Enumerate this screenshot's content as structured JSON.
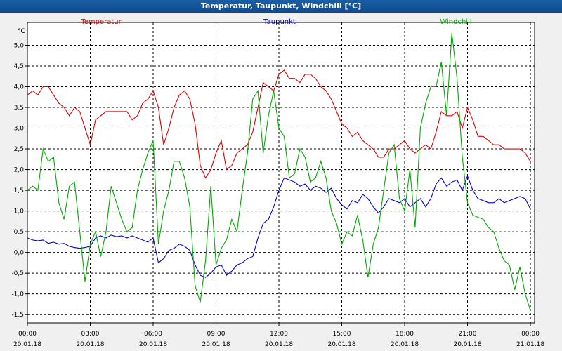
{
  "window": {
    "title": "Temperatur, Taupunkt, Windchill [°C]"
  },
  "colors": {
    "temperature": "#dd0000",
    "dewpoint": "#0000cc",
    "windchill": "#00aa00",
    "grid": "#000000",
    "titlebar": "#1b5fa6"
  },
  "chart_data": {
    "type": "line",
    "title": "Temperatur, Taupunkt, Windchill [°C]",
    "ylabel": "°C",
    "ylim": [
      -1.7,
      5.55
    ],
    "xlim": [
      0,
      24.2
    ],
    "grid": true,
    "legend_placement": "top",
    "y_ticks": [
      "5,0",
      "4,5",
      "4,0",
      "3,5",
      "3,0",
      "2,5",
      "2,0",
      "1,5",
      "1,0",
      "0,5",
      "0,0",
      "-0,5",
      "-1,0",
      "-1,5"
    ],
    "y_tick_values": [
      5.0,
      4.5,
      4.0,
      3.5,
      3.0,
      2.5,
      2.0,
      1.5,
      1.0,
      0.5,
      0.0,
      -0.5,
      -1.0,
      -1.5
    ],
    "x_ticks": [
      {
        "time": "00:00",
        "date": "20.01.18",
        "hour": 0
      },
      {
        "time": "03:00",
        "date": "20.01.18",
        "hour": 3
      },
      {
        "time": "06:00",
        "date": "20.01.18",
        "hour": 6
      },
      {
        "time": "09:00",
        "date": "20.01.18",
        "hour": 9
      },
      {
        "time": "12:00",
        "date": "20.01.18",
        "hour": 12
      },
      {
        "time": "15:00",
        "date": "20.01.18",
        "hour": 15
      },
      {
        "time": "18:00",
        "date": "20.01.18",
        "hour": 18
      },
      {
        "time": "21:00",
        "date": "20.01.18",
        "hour": 21
      },
      {
        "time": "00:00",
        "date": "21.01.18",
        "hour": 24
      }
    ],
    "series": [
      {
        "name": "Temperatur",
        "color": "#dd0000",
        "x": [
          0,
          0.25,
          0.5,
          0.75,
          1,
          1.25,
          1.5,
          1.75,
          2,
          2.25,
          2.5,
          2.75,
          3,
          3.25,
          3.5,
          3.75,
          4,
          4.25,
          4.5,
          4.75,
          5,
          5.25,
          5.5,
          5.75,
          6,
          6.25,
          6.5,
          6.75,
          7,
          7.25,
          7.5,
          7.75,
          8,
          8.25,
          8.5,
          8.75,
          9,
          9.25,
          9.5,
          9.75,
          10,
          10.25,
          10.5,
          10.75,
          11,
          11.25,
          11.5,
          11.75,
          12,
          12.25,
          12.5,
          12.75,
          13,
          13.25,
          13.5,
          13.75,
          14,
          14.25,
          14.5,
          14.75,
          15,
          15.25,
          15.5,
          15.75,
          16,
          16.25,
          16.5,
          16.75,
          17,
          17.25,
          17.5,
          17.75,
          18,
          18.25,
          18.5,
          18.75,
          19,
          19.25,
          19.5,
          19.75,
          20,
          20.25,
          20.5,
          20.75,
          21,
          21.25,
          21.5,
          21.75,
          22,
          22.25,
          22.5,
          22.75,
          23,
          23.25,
          23.5,
          23.75,
          24
        ],
        "y": [
          3.8,
          3.9,
          3.8,
          4.0,
          4.0,
          3.8,
          3.6,
          3.5,
          3.3,
          3.5,
          3.4,
          3.0,
          2.6,
          3.2,
          3.3,
          3.4,
          3.4,
          3.4,
          3.4,
          3.4,
          3.2,
          3.3,
          3.6,
          3.7,
          3.9,
          3.5,
          2.6,
          3.0,
          3.5,
          3.8,
          3.9,
          3.7,
          3.1,
          2.1,
          1.8,
          2.0,
          2.4,
          2.7,
          2.0,
          2.1,
          2.4,
          2.5,
          2.6,
          2.9,
          3.5,
          4.1,
          4.0,
          3.9,
          4.3,
          4.4,
          4.2,
          4.2,
          4.1,
          4.3,
          4.3,
          4.2,
          4.0,
          3.9,
          3.7,
          3.4,
          3.1,
          3.0,
          2.8,
          2.9,
          2.7,
          2.6,
          2.5,
          2.3,
          2.3,
          2.5,
          2.5,
          2.6,
          2.7,
          2.5,
          2.4,
          2.5,
          2.6,
          2.5,
          2.9,
          3.4,
          3.3,
          3.3,
          3.4,
          3.0,
          3.5,
          3.2,
          2.8,
          2.8,
          2.7,
          2.6,
          2.6,
          2.5,
          2.5,
          2.5,
          2.5,
          2.4,
          2.2
        ]
      },
      {
        "name": "Taupunkt",
        "color": "#0000cc",
        "x": [
          0,
          0.25,
          0.5,
          0.75,
          1,
          1.25,
          1.5,
          1.75,
          2,
          2.25,
          2.5,
          2.75,
          3,
          3.25,
          3.5,
          3.75,
          4,
          4.25,
          4.5,
          4.75,
          5,
          5.25,
          5.5,
          5.75,
          6,
          6.25,
          6.5,
          6.75,
          7,
          7.25,
          7.5,
          7.75,
          8,
          8.25,
          8.5,
          8.75,
          9,
          9.25,
          9.5,
          9.75,
          10,
          10.25,
          10.5,
          10.75,
          11,
          11.25,
          11.5,
          11.75,
          12,
          12.25,
          12.5,
          12.75,
          13,
          13.25,
          13.5,
          13.75,
          14,
          14.25,
          14.5,
          14.75,
          15,
          15.25,
          15.5,
          15.75,
          16,
          16.25,
          16.5,
          16.75,
          17,
          17.25,
          17.5,
          17.75,
          18,
          18.25,
          18.5,
          18.75,
          19,
          19.25,
          19.5,
          19.75,
          20,
          20.25,
          20.5,
          20.75,
          21,
          21.25,
          21.5,
          21.75,
          22,
          22.25,
          22.5,
          22.75,
          23,
          23.25,
          23.5,
          23.75,
          24
        ],
        "y": [
          0.35,
          0.3,
          0.28,
          0.3,
          0.22,
          0.25,
          0.2,
          0.22,
          0.15,
          0.12,
          0.1,
          0.12,
          0.15,
          0.35,
          0.4,
          0.35,
          0.42,
          0.38,
          0.4,
          0.35,
          0.4,
          0.35,
          0.3,
          0.25,
          0.35,
          -0.25,
          -0.15,
          0.05,
          0.1,
          0.2,
          0.15,
          0.05,
          -0.3,
          -0.55,
          -0.6,
          -0.5,
          -0.35,
          -0.3,
          -0.55,
          -0.45,
          -0.3,
          -0.25,
          -0.15,
          -0.1,
          0.35,
          0.7,
          0.8,
          1.1,
          1.5,
          1.8,
          1.75,
          1.7,
          1.6,
          1.65,
          1.5,
          1.6,
          1.55,
          1.45,
          1.55,
          1.3,
          1.15,
          1.05,
          1.25,
          1.2,
          1.4,
          1.3,
          1.1,
          0.95,
          1.1,
          1.3,
          1.25,
          1.2,
          1.3,
          1.1,
          1.2,
          1.3,
          1.1,
          1.3,
          1.65,
          1.8,
          1.6,
          1.7,
          1.75,
          1.5,
          1.85,
          1.5,
          1.3,
          1.25,
          1.2,
          1.2,
          1.3,
          1.2,
          1.25,
          1.3,
          1.35,
          1.3,
          1.05
        ]
      },
      {
        "name": "Windchill",
        "color": "#00aa00",
        "x": [
          0,
          0.25,
          0.5,
          0.75,
          1,
          1.25,
          1.5,
          1.75,
          2,
          2.25,
          2.5,
          2.75,
          3,
          3.25,
          3.5,
          3.75,
          4,
          4.25,
          4.5,
          4.75,
          5,
          5.25,
          5.5,
          5.75,
          6,
          6.25,
          6.5,
          6.75,
          7,
          7.25,
          7.5,
          7.75,
          8,
          8.25,
          8.5,
          8.75,
          9,
          9.25,
          9.5,
          9.75,
          10,
          10.25,
          10.5,
          10.75,
          11,
          11.25,
          11.5,
          11.75,
          12,
          12.25,
          12.5,
          12.75,
          13,
          13.25,
          13.5,
          13.75,
          14,
          14.25,
          14.5,
          14.75,
          15,
          15.25,
          15.5,
          15.75,
          16,
          16.25,
          16.5,
          16.75,
          17,
          17.25,
          17.5,
          17.75,
          18,
          18.25,
          18.5,
          18.75,
          19,
          19.25,
          19.5,
          19.75,
          20,
          20.25,
          20.5,
          20.75,
          21,
          21.25,
          21.5,
          21.75,
          22,
          22.25,
          22.5,
          22.75,
          23,
          23.25,
          23.5,
          23.75,
          24
        ],
        "y": [
          1.5,
          1.6,
          1.5,
          2.5,
          2.2,
          2.3,
          1.2,
          0.8,
          1.6,
          1.7,
          0.5,
          -0.7,
          0.2,
          0.5,
          -0.1,
          0.5,
          1.6,
          1.2,
          0.8,
          0.5,
          0.6,
          1.5,
          2.0,
          2.4,
          2.7,
          0.2,
          1.0,
          1.5,
          2.2,
          2.2,
          1.8,
          1.1,
          -0.8,
          -1.2,
          -0.2,
          1.6,
          -0.3,
          0.1,
          0.3,
          0.8,
          0.5,
          1.5,
          2.4,
          3.7,
          3.9,
          2.4,
          3.3,
          3.9,
          3.0,
          2.8,
          1.8,
          1.9,
          2.5,
          2.3,
          1.7,
          1.8,
          2.2,
          1.8,
          1.0,
          0.7,
          0.2,
          0.5,
          0.4,
          0.9,
          0.3,
          -0.6,
          0.2,
          0.6,
          1.5,
          2.4,
          2.6,
          1.3,
          1.0,
          2.0,
          0.6,
          3.0,
          3.6,
          4.0,
          4.0,
          4.6,
          3.3,
          5.3,
          4.2,
          2.3,
          1.2,
          0.9,
          0.85,
          0.8,
          0.6,
          0.5,
          0.1,
          -0.2,
          -0.3,
          -0.9,
          -0.35,
          -1.0,
          -1.4
        ]
      }
    ]
  }
}
